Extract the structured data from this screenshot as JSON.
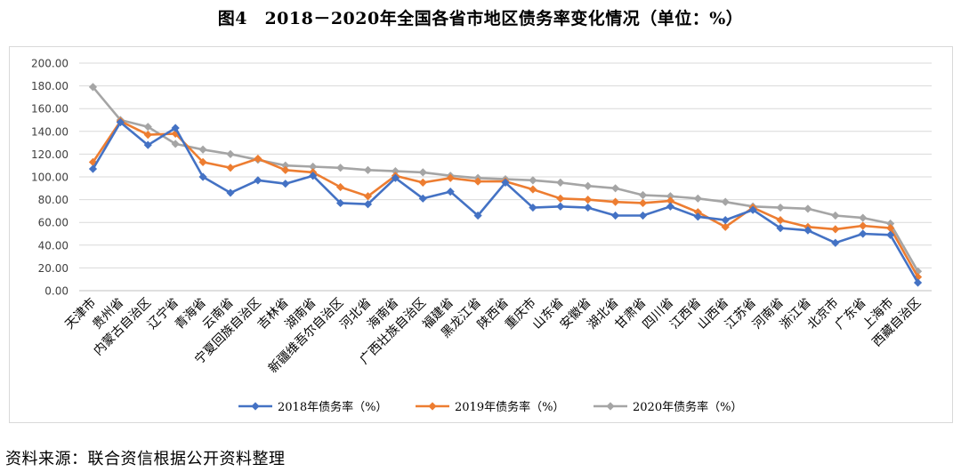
{
  "figure_title": "图4　2018－2020年全国各省市地区债务率变化情况（单位：%）",
  "source": "资料来源：联合资信根据公开资料整理",
  "chart_data": {
    "type": "line",
    "title": "图4　2018－2020年全国各省市地区债务率变化情况（单位：%）",
    "xlabel": "",
    "ylabel": "",
    "ylim": [
      0,
      200
    ],
    "yticks": [
      "0.00",
      "20.00",
      "40.00",
      "60.00",
      "80.00",
      "100.00",
      "120.00",
      "140.00",
      "160.00",
      "180.00",
      "200.00"
    ],
    "grid": true,
    "legend": "bottom",
    "categories": [
      "天津市",
      "贵州省",
      "内蒙古自治区",
      "辽宁省",
      "青海省",
      "云南省",
      "宁夏回族自治区",
      "吉林省",
      "湖南省",
      "新疆维吾尔自治区",
      "河北省",
      "海南省",
      "广西壮族自治区",
      "福建省",
      "黑龙江省",
      "陕西省",
      "重庆市",
      "山东省",
      "安徽省",
      "湖北省",
      "甘肃省",
      "四川省",
      "江西省",
      "山西省",
      "江苏省",
      "河南省",
      "浙江省",
      "北京市",
      "广东省",
      "上海市",
      "西藏自治区"
    ],
    "series": [
      {
        "name": "2018年债务率（%）",
        "color": "#4472c4",
        "values": [
          107,
          148,
          128,
          143,
          100,
          86,
          97,
          94,
          101,
          77,
          76,
          99,
          81,
          87,
          66,
          95,
          73,
          74,
          73,
          66,
          66,
          74,
          65,
          62,
          71,
          55,
          53,
          42,
          50,
          49,
          7
        ]
      },
      {
        "name": "2019年债务率（%）",
        "color": "#ed7d31",
        "values": [
          113,
          149,
          137,
          138,
          113,
          108,
          116,
          106,
          104,
          91,
          83,
          101,
          95,
          99,
          96,
          96,
          89,
          81,
          80,
          78,
          77,
          79,
          69,
          56,
          73,
          62,
          56,
          54,
          57,
          55,
          12
        ]
      },
      {
        "name": "2020年债务率（%）",
        "color": "#a5a5a5",
        "values": [
          179,
          150,
          144,
          129,
          124,
          120,
          115,
          110,
          109,
          108,
          106,
          105,
          104,
          101,
          99,
          98,
          97,
          95,
          92,
          90,
          84,
          83,
          81,
          78,
          74,
          73,
          72,
          66,
          64,
          59,
          17
        ]
      }
    ]
  }
}
